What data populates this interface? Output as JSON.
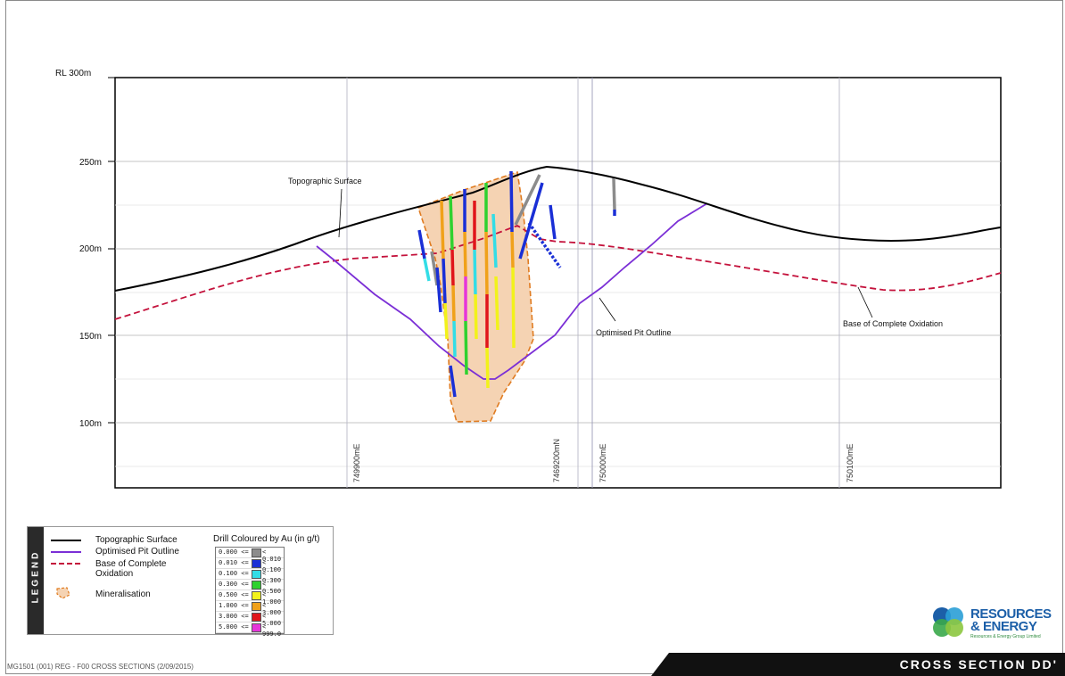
{
  "figure": {
    "rl_labels": [
      "RL 300m",
      "250m",
      "200m",
      "150m",
      "100m"
    ],
    "easting_labels": [
      "749900mE",
      "7469200mN",
      "750000mE",
      "750100mE"
    ],
    "annotations": {
      "topographic_surface": "Topographic Surface",
      "optimised_pit": "Optimised Pit Outline",
      "oxidation": "Base of Complete Oxidation"
    }
  },
  "legend": {
    "tab_label": "LEGEND",
    "items": [
      {
        "label": "Topographic Surface"
      },
      {
        "label": "Optimised Pit Outline"
      },
      {
        "label": "Base of Complete Oxidation"
      },
      {
        "label": "Mineralisation"
      }
    ],
    "au_title": "Drill Coloured by Au (in g/t)",
    "au_classes": [
      {
        "lo": "0.000 <=",
        "hi": "< 0.010",
        "color": "#8c8c8c"
      },
      {
        "lo": "0.010 <=",
        "hi": "< 0.100",
        "color": "#1a2fd6"
      },
      {
        "lo": "0.100 <=",
        "hi": "< 0.300",
        "color": "#33dde6"
      },
      {
        "lo": "0.300 <=",
        "hi": "< 0.500",
        "color": "#2fd12f"
      },
      {
        "lo": "0.500 <=",
        "hi": "< 1.000",
        "color": "#f2f21a"
      },
      {
        "lo": "1.000 <=",
        "hi": "< 3.000",
        "color": "#f0a11a"
      },
      {
        "lo": "3.000 <=",
        "hi": "< 5.000",
        "color": "#e0151a"
      },
      {
        "lo": "5.000 <=",
        "hi": "< 999.0",
        "color": "#e636d9"
      }
    ]
  },
  "logo": {
    "line1": "RESOURCES",
    "line2": "& ENERGY",
    "line3": "Resources & Energy Group Limited"
  },
  "footer": {
    "reference": "MG1501 (001) REG - F00 CROSS SECTIONS (2/09/2015)",
    "title": "CROSS SECTION DD'"
  },
  "colors": {
    "topo": "#000000",
    "pit": "#7b2fd6",
    "oxidation": "#c4123c",
    "mineralisation_fill": "#f5d3b3",
    "mineralisation_edge": "#e07b20"
  }
}
